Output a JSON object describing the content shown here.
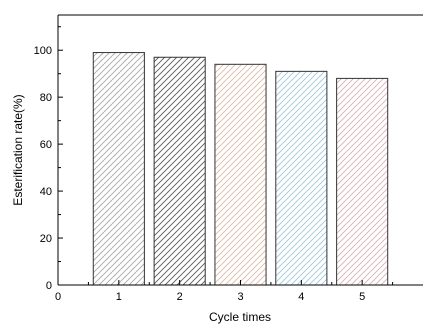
{
  "chart_data": {
    "type": "bar",
    "title": "",
    "xlabel": "Cycle times",
    "ylabel": "Esterification rate(%)",
    "x_ticks": [
      "0",
      "1",
      "2",
      "3",
      "4",
      "5"
    ],
    "xlim": [
      0,
      6
    ],
    "ylim": [
      0,
      115
    ],
    "y_ticks": [
      0,
      20,
      40,
      60,
      80,
      100
    ],
    "grid": false,
    "categories": [
      "1",
      "2",
      "3",
      "4",
      "5"
    ],
    "values": [
      99,
      97,
      94,
      91,
      88
    ],
    "bar_colors": [
      "#a8a8a8",
      "#5a5a5a",
      "#f2b494",
      "#8ecfe8",
      "#e6a9b4"
    ],
    "hatch": "diagonal"
  }
}
